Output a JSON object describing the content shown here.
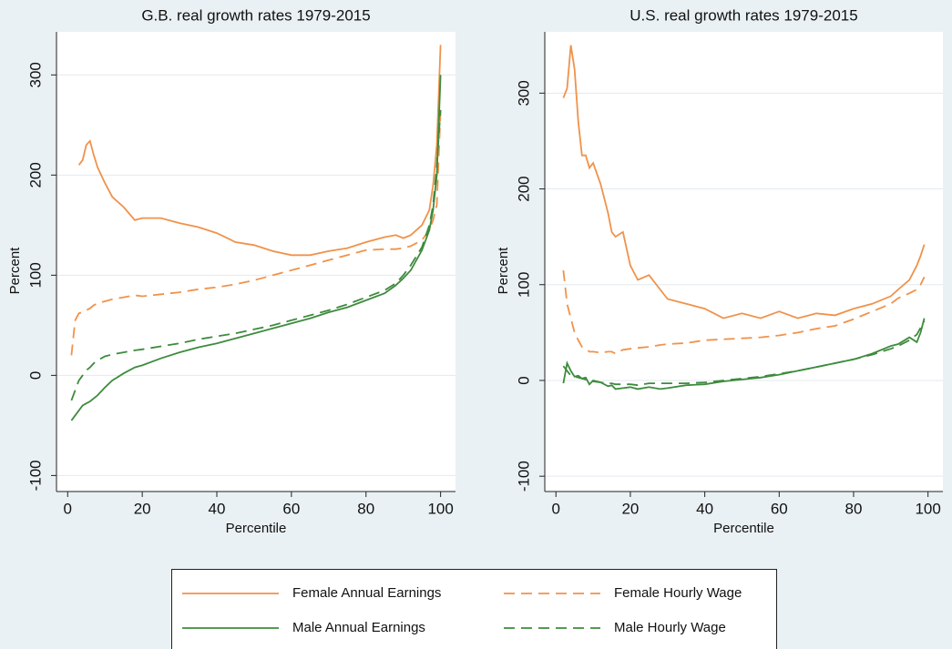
{
  "chart_data": [
    {
      "type": "line",
      "title": "G.B. real growth rates 1979-2015",
      "xlabel": "Percentile",
      "ylabel": "Percent",
      "legend": "bottom",
      "x": [
        1,
        2,
        3,
        4,
        5,
        6,
        7,
        8,
        10,
        12,
        15,
        18,
        20,
        25,
        30,
        35,
        40,
        45,
        50,
        55,
        60,
        65,
        70,
        75,
        80,
        85,
        88,
        90,
        92,
        95,
        97,
        98,
        99,
        100
      ],
      "xlim": [
        -3,
        104
      ],
      "xticks": [
        0,
        20,
        40,
        60,
        80,
        100
      ],
      "ylim": [
        -116,
        343
      ],
      "yticks": [
        -100,
        0,
        100,
        200,
        300
      ],
      "grid": true,
      "series": [
        {
          "name": "Female Annual Earnings",
          "color": "#f0924a",
          "dash": false,
          "values": [
            null,
            null,
            210,
            215,
            230,
            234,
            220,
            208,
            192,
            178,
            168,
            155,
            157,
            157,
            152,
            148,
            142,
            133,
            130,
            124,
            120,
            120,
            124,
            127,
            133,
            138,
            140,
            137,
            140,
            150,
            165,
            190,
            230,
            330
          ]
        },
        {
          "name": "Female Hourly Wage",
          "color": "#f0924a",
          "dash": true,
          "values": [
            20,
            55,
            62,
            63,
            65,
            67,
            70,
            72,
            74,
            76,
            78,
            80,
            79,
            81,
            83,
            86,
            88,
            91,
            95,
            100,
            105,
            110,
            115,
            120,
            125,
            126,
            126,
            127,
            129,
            135,
            145,
            155,
            170,
            265
          ]
        },
        {
          "name": "Male Annual Earnings",
          "color": "#3d8b3d",
          "dash": false,
          "values": [
            -45,
            -40,
            -35,
            -30,
            -28,
            -26,
            -23,
            -20,
            -12,
            -5,
            2,
            8,
            10,
            17,
            23,
            28,
            32,
            37,
            42,
            47,
            52,
            57,
            63,
            68,
            75,
            82,
            90,
            97,
            105,
            125,
            145,
            165,
            200,
            300
          ]
        },
        {
          "name": "Male Hourly Wage",
          "color": "#3d8b3d",
          "dash": true,
          "values": [
            -25,
            -15,
            -5,
            0,
            5,
            8,
            12,
            15,
            19,
            21,
            23,
            25,
            26,
            29,
            32,
            36,
            39,
            42,
            46,
            50,
            55,
            60,
            65,
            71,
            78,
            85,
            92,
            100,
            110,
            128,
            150,
            170,
            210,
            265
          ]
        }
      ]
    },
    {
      "type": "line",
      "title": "U.S. real growth rates 1979-2015",
      "xlabel": "Percentile",
      "ylabel": "Percent",
      "x": [
        2,
        3,
        4,
        5,
        6,
        7,
        8,
        9,
        10,
        12,
        14,
        15,
        16,
        18,
        20,
        22,
        25,
        28,
        30,
        35,
        40,
        45,
        50,
        55,
        60,
        65,
        70,
        75,
        80,
        85,
        90,
        92,
        95,
        97,
        98,
        99
      ],
      "xlim": [
        -3,
        104
      ],
      "xticks": [
        0,
        20,
        40,
        60,
        80,
        100
      ],
      "ylim": [
        -116,
        364
      ],
      "yticks": [
        -100,
        0,
        100,
        200,
        300
      ],
      "grid": true,
      "series": [
        {
          "color": "#f0924a",
          "dash": false,
          "values": [
            295,
            305,
            350,
            325,
            270,
            235,
            235,
            222,
            227,
            205,
            175,
            155,
            150,
            155,
            120,
            105,
            110,
            95,
            85,
            80,
            75,
            65,
            70,
            65,
            72,
            65,
            70,
            68,
            75,
            80,
            88,
            95,
            105,
            120,
            130,
            142
          ]
        },
        {
          "color": "#f0924a",
          "dash": true,
          "values": [
            115,
            80,
            65,
            50,
            42,
            35,
            33,
            30,
            30,
            29,
            30,
            30,
            28,
            32,
            33,
            34,
            35,
            37,
            38,
            39,
            42,
            43,
            44,
            45,
            47,
            50,
            54,
            57,
            64,
            72,
            80,
            86,
            91,
            95,
            100,
            108
          ]
        },
        {
          "color": "#3d8b3d",
          "dash": false,
          "values": [
            -3,
            18,
            10,
            4,
            5,
            2,
            3,
            -4,
            0,
            -2,
            -6,
            -5,
            -9,
            -8,
            -7,
            -9,
            -7,
            -9,
            -8,
            -5,
            -4,
            -1,
            1,
            3,
            6,
            10,
            14,
            18,
            22,
            28,
            36,
            38,
            45,
            40,
            50,
            65
          ]
        },
        {
          "color": "#3d8b3d",
          "dash": true,
          "values": [
            15,
            10,
            5,
            4,
            3,
            2,
            1,
            0,
            -1,
            -2,
            -3,
            -3,
            -4,
            -4,
            -4,
            -5,
            -3,
            -3,
            -3,
            -3,
            -2,
            0,
            2,
            4,
            7,
            10,
            14,
            18,
            22,
            27,
            33,
            36,
            42,
            48,
            55,
            62
          ]
        }
      ]
    }
  ]
}
